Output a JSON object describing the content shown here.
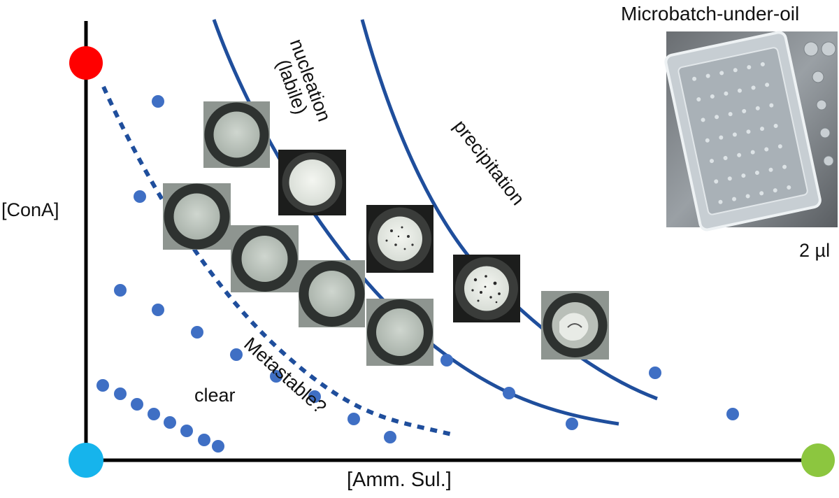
{
  "labels": {
    "y_axis": "[ConA]",
    "x_axis": "[Amm. Sul.]",
    "clear": "clear",
    "metastable": "Metastable?",
    "nucleation_line1": "nucleation",
    "nucleation_line2": "(labile)",
    "precipitation": "precipitation",
    "plate_title": "Microbatch-under-oil",
    "drop_volume": "2 µl"
  },
  "colors": {
    "axis": "#000000",
    "boundary": "#1f4e9c",
    "point": "#3f6fc4",
    "protein_stock": "#ff0000",
    "origin": "#16b4ec",
    "salt_stock": "#8cc63f"
  },
  "icons": [
    "drop-image-clear",
    "drop-image-crystals",
    "drop-image-precipitate",
    "plate-photo"
  ]
}
